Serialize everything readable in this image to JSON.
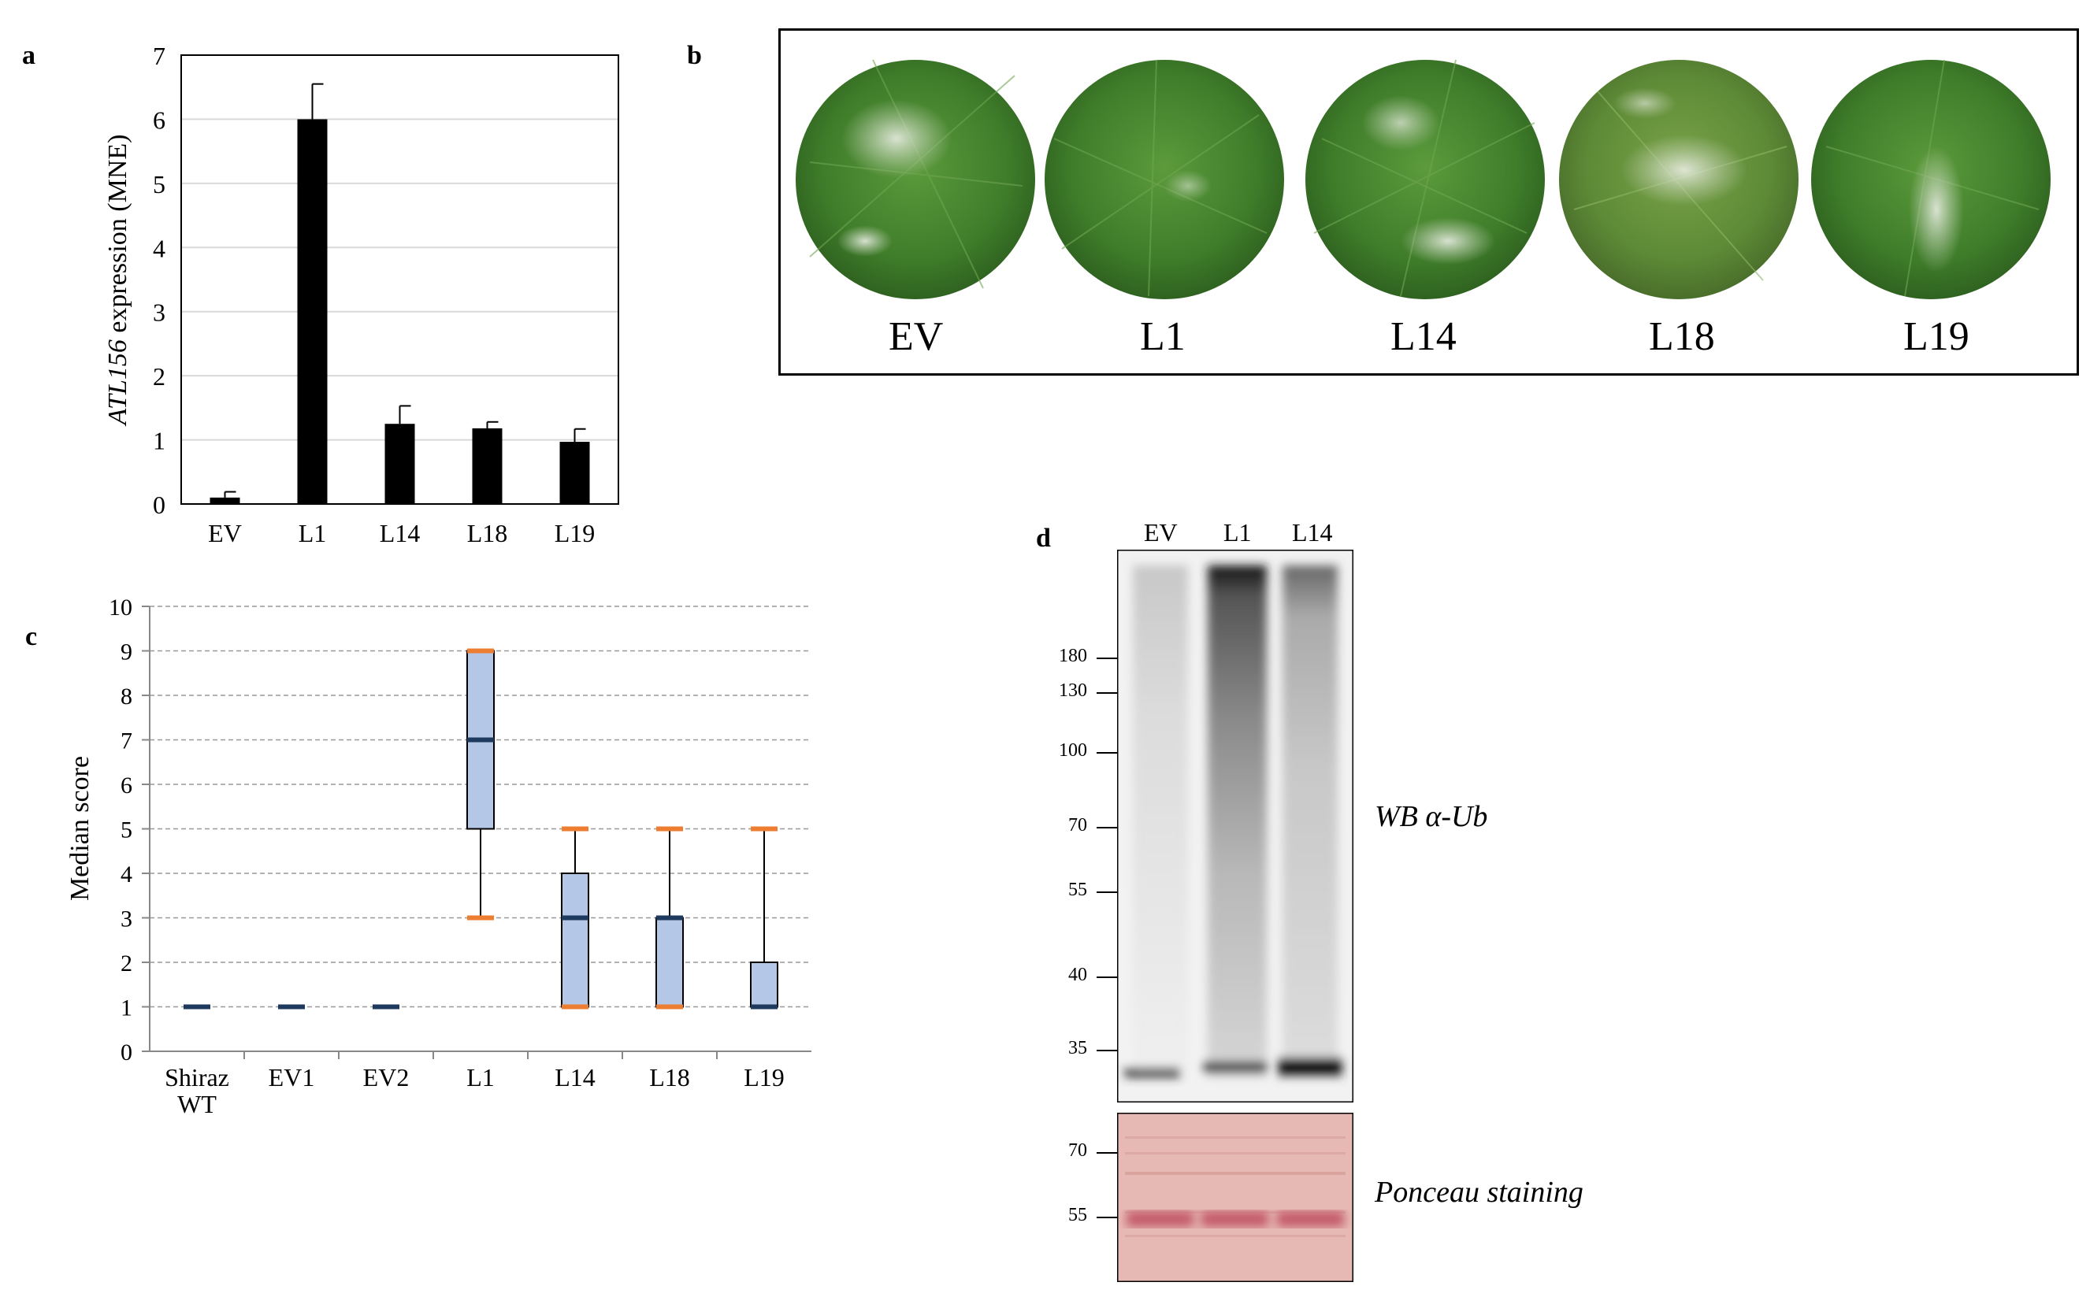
{
  "panels": {
    "a": "a",
    "b": "b",
    "c": "c",
    "d": "d"
  },
  "chart_data": [
    {
      "panel": "a",
      "type": "bar",
      "categories": [
        "EV",
        "L1",
        "L14",
        "L18",
        "L19"
      ],
      "values": [
        0.1,
        6.0,
        1.25,
        1.18,
        0.97
      ],
      "errors": [
        0.09,
        0.55,
        0.28,
        0.1,
        0.2
      ],
      "ylabel_italic": "ATL156",
      "ylabel_rest": " expression (MNE)",
      "ylim": [
        0,
        7
      ],
      "yticks": [
        0,
        1,
        2,
        3,
        4,
        5,
        6,
        7
      ],
      "grid": true,
      "bar_color": "#000000"
    },
    {
      "panel": "c",
      "type": "box",
      "categories": [
        "Shiraz WT",
        "EV1",
        "EV2",
        "L1",
        "L14",
        "L18",
        "L19"
      ],
      "category_lines": [
        [
          "Shiraz",
          "WT"
        ],
        [
          "EV1"
        ],
        [
          "EV2"
        ],
        [
          "L1"
        ],
        [
          "L14"
        ],
        [
          "L18"
        ],
        [
          "L19"
        ]
      ],
      "boxes": [
        {
          "min": 1,
          "q1": 1,
          "median": 1,
          "q3": 1,
          "max": 1
        },
        {
          "min": 1,
          "q1": 1,
          "median": 1,
          "q3": 1,
          "max": 1
        },
        {
          "min": 1,
          "q1": 1,
          "median": 1,
          "q3": 1,
          "max": 1
        },
        {
          "min": 3,
          "q1": 5,
          "median": 7,
          "q3": 9,
          "max": 9
        },
        {
          "min": 1,
          "q1": 1,
          "median": 3,
          "q3": 4,
          "max": 5
        },
        {
          "min": 1,
          "q1": 1,
          "median": 3,
          "q3": 3,
          "max": 5
        },
        {
          "min": 1,
          "q1": 1,
          "median": 1,
          "q3": 2,
          "max": 5
        }
      ],
      "ylabel": "Median score",
      "ylim": [
        0,
        10
      ],
      "yticks": [
        0,
        1,
        2,
        3,
        4,
        5,
        6,
        7,
        8,
        9,
        10
      ],
      "grid": "dashed",
      "colors": {
        "box": "#b4c7e7",
        "median": "#1f3a5f",
        "whisker_cap": "#ed7d31",
        "outline": "#000000"
      }
    }
  ],
  "leaf_panel": {
    "labels": [
      "EV",
      "L1",
      "L14",
      "L18",
      "L19"
    ]
  },
  "blot_panel": {
    "lanes": [
      "EV",
      "L1",
      "L14"
    ],
    "markers_main": [
      "180",
      "130",
      "100",
      "70",
      "55",
      "40",
      "35"
    ],
    "markers_ponceau": [
      "70",
      "55"
    ],
    "label_main": "WB α-Ub",
    "label_ponceau": "Ponceau staining"
  }
}
